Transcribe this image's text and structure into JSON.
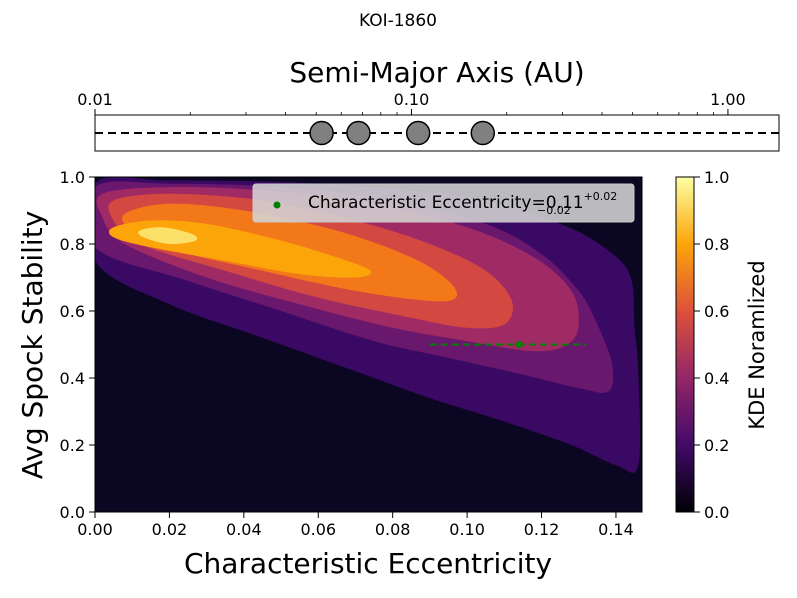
{
  "figure_title": "KOI-1860",
  "chart_data": [
    {
      "type": "scatter",
      "title": "Semi-Major Axis (AU)",
      "xscale": "log",
      "xlim": [
        0.01,
        1.45
      ],
      "xticks": [
        {
          "value": 0.01,
          "label": "0.01"
        },
        {
          "value": 0.1,
          "label": "0.10"
        },
        {
          "value": 1.0,
          "label": "1.00"
        }
      ],
      "planets": [
        0.052,
        0.068,
        0.105,
        0.168
      ],
      "line_style": "dashed",
      "marker_color": "#808080"
    },
    {
      "type": "heatmap",
      "xlabel": "Characteristic Eccentricity",
      "ylabel": "Avg Spock Stability",
      "xlim": [
        0.0,
        0.147
      ],
      "ylim": [
        0.0,
        1.0
      ],
      "xticks": [
        {
          "value": 0.0,
          "label": "0.00"
        },
        {
          "value": 0.02,
          "label": "0.02"
        },
        {
          "value": 0.04,
          "label": "0.04"
        },
        {
          "value": 0.06,
          "label": "0.06"
        },
        {
          "value": 0.08,
          "label": "0.08"
        },
        {
          "value": 0.1,
          "label": "0.10"
        },
        {
          "value": 0.12,
          "label": "0.12"
        },
        {
          "value": 0.14,
          "label": "0.14"
        }
      ],
      "yticks": [
        {
          "value": 0.0,
          "label": "0.0"
        },
        {
          "value": 0.2,
          "label": "0.2"
        },
        {
          "value": 0.4,
          "label": "0.4"
        },
        {
          "value": 0.6,
          "label": "0.6"
        },
        {
          "value": 0.8,
          "label": "0.8"
        },
        {
          "value": 1.0,
          "label": "1.0"
        }
      ],
      "density_peak": {
        "x": 0.02,
        "y": 0.82
      },
      "levels": [
        {
          "level": 0.143,
          "color": "#3a0963",
          "points": [
            [
              0.0,
              0.98
            ],
            [
              0.02,
              0.99
            ],
            [
              0.06,
              0.98
            ],
            [
              0.1,
              0.94
            ],
            [
              0.125,
              0.86
            ],
            [
              0.138,
              0.78
            ],
            [
              0.144,
              0.7
            ],
            [
              0.145,
              0.55
            ],
            [
              0.146,
              0.42
            ],
            [
              0.146,
              0.14
            ],
            [
              0.14,
              0.14
            ],
            [
              0.128,
              0.2
            ],
            [
              0.11,
              0.27
            ],
            [
              0.09,
              0.34
            ],
            [
              0.07,
              0.42
            ],
            [
              0.045,
              0.52
            ],
            [
              0.02,
              0.62
            ],
            [
              0.0,
              0.75
            ]
          ]
        },
        {
          "level": 0.286,
          "color": "#6a176e",
          "points": [
            [
              0.0,
              0.97
            ],
            [
              0.02,
              0.98
            ],
            [
              0.05,
              0.97
            ],
            [
              0.08,
              0.93
            ],
            [
              0.105,
              0.86
            ],
            [
              0.12,
              0.77
            ],
            [
              0.13,
              0.66
            ],
            [
              0.135,
              0.56
            ],
            [
              0.139,
              0.44
            ],
            [
              0.138,
              0.36
            ],
            [
              0.13,
              0.37
            ],
            [
              0.115,
              0.41
            ],
            [
              0.095,
              0.46
            ],
            [
              0.075,
              0.51
            ],
            [
              0.05,
              0.6
            ],
            [
              0.025,
              0.69
            ],
            [
              0.0,
              0.79
            ]
          ]
        },
        {
          "level": 0.429,
          "color": "#a02a64",
          "points": [
            [
              0.002,
              0.95
            ],
            [
              0.02,
              0.97
            ],
            [
              0.045,
              0.96
            ],
            [
              0.075,
              0.92
            ],
            [
              0.1,
              0.85
            ],
            [
              0.118,
              0.76
            ],
            [
              0.128,
              0.66
            ],
            [
              0.13,
              0.56
            ],
            [
              0.127,
              0.5
            ],
            [
              0.118,
              0.48
            ],
            [
              0.1,
              0.51
            ],
            [
              0.08,
              0.55
            ],
            [
              0.055,
              0.62
            ],
            [
              0.03,
              0.7
            ],
            [
              0.008,
              0.8
            ],
            [
              0.002,
              0.88
            ]
          ]
        },
        {
          "level": 0.571,
          "color": "#d44842",
          "points": [
            [
              0.005,
              0.93
            ],
            [
              0.02,
              0.95
            ],
            [
              0.045,
              0.93
            ],
            [
              0.07,
              0.87
            ],
            [
              0.09,
              0.8
            ],
            [
              0.105,
              0.72
            ],
            [
              0.112,
              0.63
            ],
            [
              0.11,
              0.56
            ],
            [
              0.1,
              0.55
            ],
            [
              0.085,
              0.58
            ],
            [
              0.06,
              0.64
            ],
            [
              0.035,
              0.72
            ],
            [
              0.012,
              0.8
            ],
            [
              0.005,
              0.87
            ]
          ]
        },
        {
          "level": 0.714,
          "color": "#f37819",
          "points": [
            [
              0.008,
              0.89
            ],
            [
              0.02,
              0.92
            ],
            [
              0.04,
              0.9
            ],
            [
              0.065,
              0.84
            ],
            [
              0.085,
              0.76
            ],
            [
              0.095,
              0.69
            ],
            [
              0.097,
              0.64
            ],
            [
              0.09,
              0.63
            ],
            [
              0.07,
              0.66
            ],
            [
              0.045,
              0.72
            ],
            [
              0.022,
              0.78
            ],
            [
              0.01,
              0.84
            ]
          ]
        },
        {
          "level": 0.857,
          "color": "#fca50a",
          "points": [
            [
              0.005,
              0.85
            ],
            [
              0.015,
              0.87
            ],
            [
              0.03,
              0.86
            ],
            [
              0.05,
              0.81
            ],
            [
              0.065,
              0.76
            ],
            [
              0.074,
              0.72
            ],
            [
              0.07,
              0.7
            ],
            [
              0.055,
              0.71
            ],
            [
              0.035,
              0.75
            ],
            [
              0.015,
              0.79
            ],
            [
              0.005,
              0.82
            ]
          ]
        },
        {
          "level": 0.95,
          "color": "#fbe06a",
          "points": [
            [
              0.012,
              0.84
            ],
            [
              0.018,
              0.85
            ],
            [
              0.026,
              0.83
            ],
            [
              0.027,
              0.81
            ],
            [
              0.02,
              0.8
            ],
            [
              0.013,
              0.82
            ]
          ]
        }
      ],
      "marker": {
        "x": 0.114,
        "y": 0.5,
        "x_low": 0.09,
        "x_high": 0.132,
        "color": "#008000"
      },
      "legend": {
        "location": "upper right",
        "label": "Characteristic Eccentricity=0.11",
        "sup": "+0.02",
        "sub": "−0.02"
      },
      "colorbar": {
        "label": "KDE Noramlized",
        "range": [
          0.0,
          1.0
        ],
        "ticks": [
          {
            "value": 0.0,
            "label": "0.0"
          },
          {
            "value": 0.2,
            "label": "0.2"
          },
          {
            "value": 0.4,
            "label": "0.4"
          },
          {
            "value": 0.6,
            "label": "0.6"
          },
          {
            "value": 0.8,
            "label": "0.8"
          },
          {
            "value": 1.0,
            "label": "1.0"
          }
        ],
        "colormap": "inferno",
        "stops": [
          "#000004",
          "#420a68",
          "#932667",
          "#dd513a",
          "#fca50a",
          "#fcffa4"
        ]
      }
    }
  ]
}
